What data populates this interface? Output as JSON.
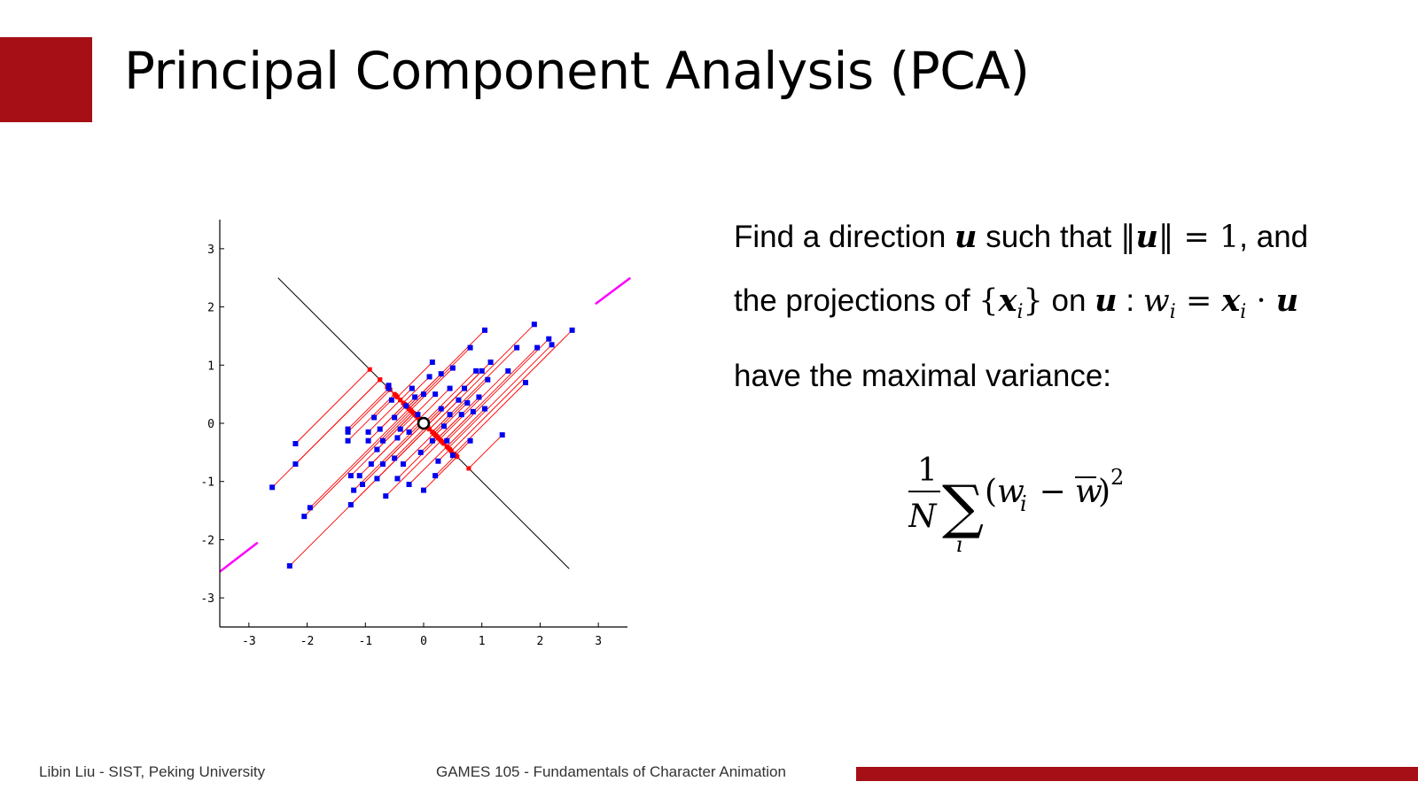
{
  "slide": {
    "title": "Principal Component Analysis (PCA)",
    "accent_color": "#a50f15"
  },
  "text": {
    "line1_a": "Find a direction ",
    "line1_u": "u",
    "line1_b": " such that ",
    "line1_norm_open": "‖",
    "line1_norm_u": "u",
    "line1_norm_close": "‖",
    "line1_eq": " = 1",
    "line1_c": ", and",
    "line2_a": "the projections of ",
    "line2_set_open": "{",
    "line2_x": "x",
    "line2_sub_i": "i",
    "line2_set_close": "}",
    "line2_b": " on ",
    "line2_u": "u",
    "line2_colon": " : ",
    "line2_w": "w",
    "line2_w_sub": "i",
    "line2_eq": " = ",
    "line2_x2": "x",
    "line2_x2_sub": "i",
    "line2_dot": " · ",
    "line2_u2": "u",
    "line3": "have the maximal variance:"
  },
  "formula": {
    "numerator": "1",
    "denominator": "N",
    "sum_symbol": "∑",
    "sum_index": "i",
    "open_paren": "(",
    "w": "w",
    "w_sub": "i",
    "minus": " − ",
    "w_bar": "w",
    "close_paren": ")",
    "power": "2"
  },
  "footer": {
    "left": "Libin Liu - SIST, Peking University",
    "center": "GAMES 105 - Fundamentals of Character Animation"
  },
  "chart_data": {
    "type": "scatter",
    "title": "",
    "xlabel": "",
    "ylabel": "",
    "xlim": [
      -3.5,
      3.5
    ],
    "ylim": [
      -3.5,
      3.5
    ],
    "x_ticks": [
      -3,
      -2,
      -1,
      0,
      1,
      2,
      3
    ],
    "y_ticks": [
      -3,
      -2,
      -1,
      0,
      1,
      2,
      3
    ],
    "grid": false,
    "principal_direction": [
      0.7071,
      0.7071
    ],
    "orthogonal_axis": {
      "from": [
        -2.5,
        2.5
      ],
      "to": [
        2.5,
        -2.5
      ]
    },
    "colors": {
      "points": "#0000ee",
      "projection_lines": "#ff0000",
      "orthogonal_axis": "#000000",
      "principal_segments": "#ff00ff",
      "mean_marker": "#000000"
    },
    "mean": [
      0,
      0
    ],
    "principal_segments": [
      {
        "from": [
          -3.5,
          -2.55
        ],
        "to": [
          -2.85,
          -2.05
        ]
      },
      {
        "from": [
          2.95,
          2.05
        ],
        "to": [
          3.55,
          2.5
        ]
      }
    ],
    "points": [
      [
        -2.6,
        -1.1
      ],
      [
        -2.3,
        -2.45
      ],
      [
        -2.2,
        -0.35
      ],
      [
        -2.2,
        -0.7
      ],
      [
        -2.05,
        -1.6
      ],
      [
        -1.95,
        -1.45
      ],
      [
        -1.3,
        -0.1
      ],
      [
        -1.3,
        -0.3
      ],
      [
        -1.25,
        -0.9
      ],
      [
        -1.25,
        -1.4
      ],
      [
        -1.2,
        -1.15
      ],
      [
        -1.1,
        -0.9
      ],
      [
        -1.05,
        -1.05
      ],
      [
        -0.95,
        -0.15
      ],
      [
        -0.95,
        -0.3
      ],
      [
        -0.9,
        -0.7
      ],
      [
        -0.85,
        0.1
      ],
      [
        -0.8,
        -0.45
      ],
      [
        -0.8,
        -0.95
      ],
      [
        -0.75,
        -0.1
      ],
      [
        -0.7,
        -0.3
      ],
      [
        -0.7,
        -0.7
      ],
      [
        -0.65,
        -1.25
      ],
      [
        -0.6,
        0.6
      ],
      [
        -0.55,
        0.4
      ],
      [
        -0.5,
        0.1
      ],
      [
        -0.5,
        -0.6
      ],
      [
        -0.45,
        -0.25
      ],
      [
        -0.45,
        -0.95
      ],
      [
        -0.4,
        -0.1
      ],
      [
        -0.35,
        -0.7
      ],
      [
        -0.3,
        0.3
      ],
      [
        -0.25,
        -0.15
      ],
      [
        -0.25,
        -1.05
      ],
      [
        -0.2,
        0.6
      ],
      [
        -0.15,
        0.45
      ],
      [
        -0.1,
        0.15
      ],
      [
        -0.05,
        -0.5
      ],
      [
        0.0,
        0.5
      ],
      [
        0.0,
        -1.15
      ],
      [
        0.05,
        0.0
      ],
      [
        0.1,
        0.8
      ],
      [
        0.15,
        1.05
      ],
      [
        0.15,
        -0.3
      ],
      [
        0.2,
        0.5
      ],
      [
        0.2,
        -0.9
      ],
      [
        0.25,
        -0.65
      ],
      [
        0.3,
        0.25
      ],
      [
        0.35,
        -0.05
      ],
      [
        0.4,
        -0.3
      ],
      [
        0.45,
        0.6
      ],
      [
        0.45,
        0.15
      ],
      [
        0.5,
        0.95
      ],
      [
        0.5,
        -0.55
      ],
      [
        0.6,
        0.4
      ],
      [
        0.65,
        0.15
      ],
      [
        0.7,
        0.6
      ],
      [
        0.75,
        0.35
      ],
      [
        0.8,
        1.3
      ],
      [
        0.8,
        -0.3
      ],
      [
        0.85,
        0.2
      ],
      [
        0.9,
        0.9
      ],
      [
        0.95,
        0.45
      ],
      [
        1.0,
        0.9
      ],
      [
        1.05,
        0.25
      ],
      [
        1.1,
        0.75
      ],
      [
        1.15,
        1.05
      ],
      [
        1.35,
        -0.2
      ],
      [
        1.05,
        1.6
      ],
      [
        1.45,
        0.9
      ],
      [
        1.6,
        1.3
      ],
      [
        1.75,
        0.7
      ],
      [
        1.9,
        1.7
      ],
      [
        1.95,
        1.3
      ],
      [
        2.15,
        1.45
      ],
      [
        2.2,
        1.35
      ],
      [
        2.55,
        1.6
      ],
      [
        -1.3,
        -0.15
      ],
      [
        0.3,
        0.85
      ],
      [
        -0.6,
        0.65
      ]
    ]
  }
}
